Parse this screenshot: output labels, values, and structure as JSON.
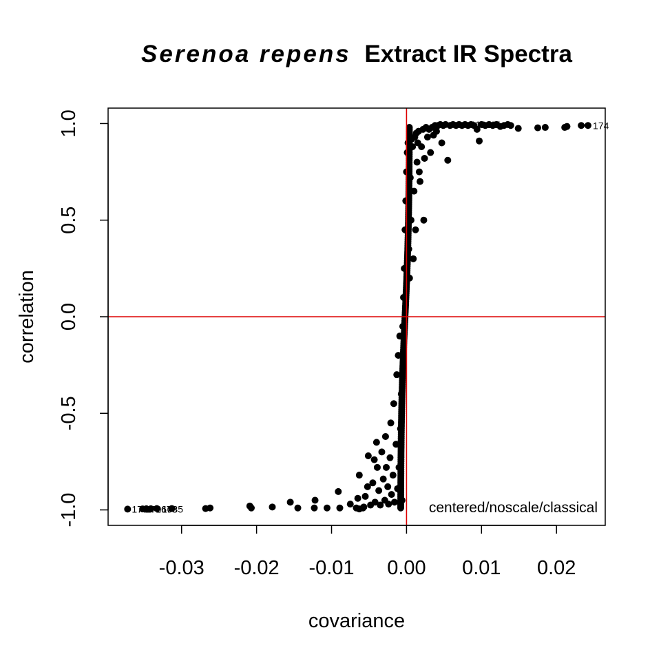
{
  "chart_data": {
    "type": "scatter",
    "title": {
      "italic": "Serenoa repens",
      "rest": "Extract IR Spectra"
    },
    "xlabel": "covariance",
    "ylabel": "correlation",
    "xlim": [
      -0.0398,
      0.0265
    ],
    "ylim": [
      -1.08,
      1.08
    ],
    "x_ticks": [
      {
        "value": -0.03,
        "label": "-0.03"
      },
      {
        "value": -0.02,
        "label": "-0.02"
      },
      {
        "value": -0.01,
        "label": "-0.01"
      },
      {
        "value": 0.0,
        "label": "0.00"
      },
      {
        "value": 0.01,
        "label": "0.01"
      },
      {
        "value": 0.02,
        "label": "0.02"
      }
    ],
    "y_ticks": [
      {
        "value": -1.0,
        "label": "-1.0"
      },
      {
        "value": -0.5,
        "label": "-0.5"
      },
      {
        "value": 0.0,
        "label": "0.0"
      },
      {
        "value": 0.5,
        "label": "0.5"
      },
      {
        "value": 1.0,
        "label": "1.0"
      }
    ],
    "reference_lines": {
      "x": 0,
      "y": 0,
      "color": "#dd0000"
    },
    "annotation": "centered/noscale/classical",
    "point_color": "#000000",
    "points": [
      [
        -0.0372,
        -0.996
      ],
      [
        -0.0352,
        -0.995
      ],
      [
        -0.0347,
        -0.994
      ],
      [
        -0.0341,
        -0.994
      ],
      [
        -0.0333,
        -0.993
      ],
      [
        -0.0313,
        -0.993
      ],
      [
        -0.0268,
        -0.993
      ],
      [
        -0.0262,
        -0.99
      ],
      [
        -0.0209,
        -0.98
      ],
      [
        -0.0207,
        -0.99
      ],
      [
        -0.0179,
        -0.985
      ],
      [
        -0.0155,
        -0.96
      ],
      [
        -0.0145,
        -0.99
      ],
      [
        -0.0123,
        -0.99
      ],
      [
        -0.0122,
        -0.95
      ],
      [
        -0.0106,
        -0.99
      ],
      [
        -0.0091,
        -0.905
      ],
      [
        -0.0089,
        -0.99
      ],
      [
        -0.0075,
        -0.97
      ],
      [
        -0.0067,
        -0.99
      ],
      [
        -0.0065,
        -0.94
      ],
      [
        -0.0063,
        -0.995
      ],
      [
        -0.0058,
        -0.99
      ],
      [
        -0.0057,
        -0.985
      ],
      [
        -0.0063,
        -0.82
      ],
      [
        -0.0055,
        -0.93
      ],
      [
        -0.0052,
        -0.88
      ],
      [
        -0.0051,
        -0.72
      ],
      [
        -0.0048,
        -0.975
      ],
      [
        -0.0045,
        -0.86
      ],
      [
        -0.0043,
        -0.74
      ],
      [
        -0.0042,
        -0.96
      ],
      [
        -0.004,
        -0.65
      ],
      [
        -0.0039,
        -0.78
      ],
      [
        -0.0037,
        -0.9
      ],
      [
        -0.0035,
        -0.975
      ],
      [
        -0.0033,
        -0.7
      ],
      [
        -0.0031,
        -0.84
      ],
      [
        -0.0029,
        -0.95
      ],
      [
        -0.0028,
        -0.62
      ],
      [
        -0.0027,
        -0.78
      ],
      [
        -0.0025,
        -0.88
      ],
      [
        -0.0024,
        -0.97
      ],
      [
        -0.0022,
        -0.73
      ],
      [
        -0.0021,
        -0.55
      ],
      [
        -0.002,
        -0.92
      ],
      [
        -0.0018,
        -0.82
      ],
      [
        -0.0017,
        -0.45
      ],
      [
        -0.0016,
        -0.96
      ],
      [
        -0.0014,
        -0.66
      ],
      [
        -0.0013,
        -0.3
      ],
      [
        -0.0012,
        -0.89
      ],
      [
        -0.0011,
        -0.2
      ],
      [
        -0.001,
        -0.78
      ],
      [
        -0.0009,
        -0.1
      ],
      [
        -0.0008,
        -0.58
      ],
      [
        -0.0007,
        -0.4
      ],
      [
        -0.0006,
        -0.95
      ],
      [
        -0.0005,
        -0.05
      ],
      [
        -0.0004,
        0.1
      ],
      [
        -0.0003,
        0.25
      ],
      [
        -0.0002,
        0.45
      ],
      [
        -0.0001,
        0.6
      ],
      [
        0.0,
        0.75
      ],
      [
        0.0001,
        0.85
      ],
      [
        0.0002,
        0.9
      ],
      [
        0.0003,
        0.35
      ],
      [
        0.0004,
        0.2
      ],
      [
        0.0005,
        0.72
      ],
      [
        0.0006,
        0.5
      ],
      [
        0.0007,
        0.92
      ],
      [
        0.0008,
        0.88
      ],
      [
        0.0009,
        0.3
      ],
      [
        0.001,
        0.65
      ],
      [
        0.0011,
        0.93
      ],
      [
        0.0012,
        0.45
      ],
      [
        0.0013,
        0.95
      ],
      [
        0.0014,
        0.8
      ],
      [
        0.0015,
        0.9
      ],
      [
        0.0016,
        0.96
      ],
      [
        0.0017,
        0.75
      ],
      [
        0.0018,
        0.7
      ],
      [
        0.002,
        0.88
      ],
      [
        0.0022,
        0.97
      ],
      [
        0.0023,
        0.5
      ],
      [
        0.0024,
        0.82
      ],
      [
        0.0026,
        0.98
      ],
      [
        0.0028,
        0.93
      ],
      [
        0.003,
        0.97
      ],
      [
        0.0032,
        0.85
      ],
      [
        0.0034,
        0.98
      ],
      [
        0.0036,
        0.94
      ],
      [
        0.0038,
        0.99
      ],
      [
        0.004,
        0.96
      ],
      [
        0.0042,
        0.99
      ],
      [
        0.0045,
        0.995
      ],
      [
        0.0047,
        0.9
      ],
      [
        0.0049,
        0.99
      ],
      [
        0.0052,
        0.995
      ],
      [
        0.0055,
        0.81
      ],
      [
        0.0058,
        0.99
      ],
      [
        0.0062,
        0.995
      ],
      [
        0.0066,
        0.99
      ],
      [
        0.007,
        0.995
      ],
      [
        0.0074,
        0.99
      ],
      [
        0.0078,
        0.995
      ],
      [
        0.0082,
        0.99
      ],
      [
        0.0086,
        0.995
      ],
      [
        0.009,
        0.99
      ],
      [
        0.0094,
        0.97
      ],
      [
        0.0097,
        0.91
      ],
      [
        0.01,
        0.995
      ],
      [
        0.0105,
        0.99
      ],
      [
        0.011,
        0.995
      ],
      [
        0.0115,
        0.99
      ],
      [
        0.012,
        0.995
      ],
      [
        0.0125,
        0.985
      ],
      [
        0.013,
        0.99
      ],
      [
        0.0135,
        0.995
      ],
      [
        0.0139,
        0.99
      ],
      [
        0.0149,
        0.975
      ],
      [
        0.0175,
        0.978
      ],
      [
        0.0185,
        0.98
      ],
      [
        0.0211,
        0.98
      ],
      [
        0.0214,
        0.985
      ],
      [
        0.0233,
        0.99
      ],
      [
        0.0242,
        0.99
      ]
    ],
    "point_labels": [
      {
        "x": -0.0372,
        "y": -0.996,
        "label": "1735"
      },
      {
        "x": -0.0354,
        "y": -0.996,
        "label": "1706"
      },
      {
        "x": -0.034,
        "y": -0.996,
        "label": "1678"
      },
      {
        "x": -0.0332,
        "y": -0.996,
        "label": "1085"
      },
      {
        "x": 0.008,
        "y": 0.995,
        "label": "1122"
      },
      {
        "x": 0.0102,
        "y": 0.995,
        "label": "11"
      },
      {
        "x": 0.0105,
        "y": 0.995,
        "label": "47"
      },
      {
        "x": 0.0243,
        "y": 0.99,
        "label": "174"
      }
    ]
  }
}
